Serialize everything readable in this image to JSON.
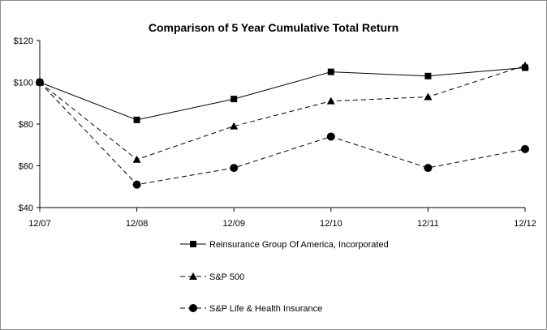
{
  "chart_data": {
    "type": "line",
    "title": "Comparison of 5 Year Cumulative Total Return",
    "xlabel": "",
    "ylabel": "",
    "categories": [
      "12/07",
      "12/08",
      "12/09",
      "12/10",
      "12/11",
      "12/12"
    ],
    "ylim": [
      40,
      120
    ],
    "y_ticks": [
      40,
      60,
      80,
      100,
      120
    ],
    "y_tick_labels": [
      "$40",
      "$60",
      "$80",
      "$100",
      "$120"
    ],
    "grid": false,
    "legend_position": "bottom",
    "series": [
      {
        "name": "Reinsurance Group Of America, Incorporated",
        "marker": "square",
        "line": "solid",
        "color": "#000000",
        "values": [
          100,
          82,
          92,
          105,
          103,
          107
        ]
      },
      {
        "name": "S&P 500",
        "marker": "triangle",
        "line": "dashed",
        "color": "#000000",
        "values": [
          100,
          63,
          79,
          91,
          93,
          108
        ]
      },
      {
        "name": "S&P Life & Health Insurance",
        "marker": "circle",
        "line": "dashed",
        "color": "#000000",
        "values": [
          100,
          51,
          59,
          74,
          59,
          68
        ]
      }
    ]
  }
}
